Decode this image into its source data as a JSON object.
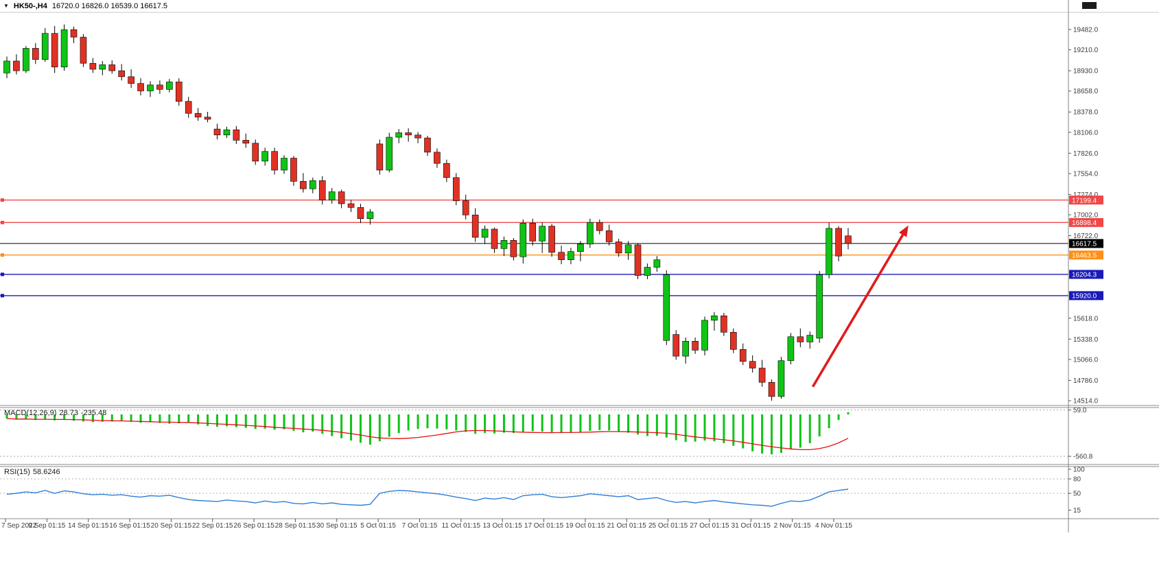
{
  "header": {
    "collapse_icon": "▼",
    "symbol": "HK50-,H4",
    "ohlc": "16720.0 16826.0 16539.0 16617.5"
  },
  "chart_data": {
    "type": "candlestick",
    "symbol": "HK50-",
    "timeframe": "H4",
    "last_ohlc": {
      "open": 16720.0,
      "high": 16826.0,
      "low": 16539.0,
      "close": 16617.5
    },
    "grid": "off",
    "price_range": {
      "top": 19482.0,
      "bottom": 14514.0
    },
    "price_axis_labels": [
      "19482.0",
      "19210.0",
      "18930.0",
      "18658.0",
      "18378.0",
      "18106.0",
      "17826.0",
      "17554.0",
      "17274.0",
      "17002.0",
      "16722.0",
      "15618.0",
      "15338.0",
      "15066.0",
      "14786.0",
      "14514.0"
    ],
    "time_labels": [
      "7 Sep 2022",
      "9 Sep 01:15",
      "14 Sep 01:15",
      "16 Sep 01:15",
      "20 Sep 01:15",
      "22 Sep 01:15",
      "26 Sep 01:15",
      "28 Sep 01:15",
      "30 Sep 01:15",
      "5 Oct 01:15",
      "7 Oct 01:15",
      "11 Oct 01:15",
      "13 Oct 01:15",
      "17 Oct 01:15",
      "19 Oct 01:15",
      "21 Oct 01:15",
      "25 Oct 01:15",
      "27 Oct 01:15",
      "31 Oct 01:15",
      "2 Nov 01:15",
      "4 Nov 01:15"
    ],
    "levels": [
      {
        "price": 17199.4,
        "label": "17199.4",
        "color": "#f04848",
        "kind": "resistance"
      },
      {
        "price": 16898.4,
        "label": "16898.4",
        "color": "#f04848",
        "kind": "resistance"
      },
      {
        "price": 16617.5,
        "label": "16617.5",
        "color": "#000000",
        "kind": "current-price"
      },
      {
        "price": 16463.5,
        "label": "16463.5",
        "color": "#ff9015",
        "kind": "level"
      },
      {
        "price": 16204.3,
        "label": "16204.3",
        "color": "#1a1ab8",
        "kind": "support"
      },
      {
        "price": 15920.0,
        "label": "15920.0",
        "color": "#1a1ab8",
        "kind": "support"
      }
    ],
    "candles": [
      [
        18900,
        19120,
        18830,
        19060
      ],
      [
        19060,
        19150,
        18880,
        18930
      ],
      [
        18930,
        19260,
        18900,
        19230
      ],
      [
        19230,
        19300,
        19020,
        19080
      ],
      [
        19080,
        19500,
        19050,
        19430
      ],
      [
        19430,
        19530,
        18900,
        18980
      ],
      [
        18980,
        19550,
        18930,
        19480
      ],
      [
        19480,
        19520,
        19300,
        19380
      ],
      [
        19380,
        19420,
        18980,
        19030
      ],
      [
        19030,
        19100,
        18900,
        18950
      ],
      [
        18950,
        19060,
        18870,
        19010
      ],
      [
        19010,
        19070,
        18890,
        18930
      ],
      [
        18930,
        19020,
        18800,
        18850
      ],
      [
        18850,
        18950,
        18700,
        18760
      ],
      [
        18760,
        18830,
        18600,
        18660
      ],
      [
        18660,
        18790,
        18580,
        18740
      ],
      [
        18740,
        18800,
        18620,
        18680
      ],
      [
        18680,
        18820,
        18640,
        18780
      ],
      [
        18780,
        18830,
        18460,
        18520
      ],
      [
        18520,
        18580,
        18300,
        18360
      ],
      [
        18360,
        18430,
        18260,
        18310
      ],
      [
        18310,
        18380,
        18240,
        18280
      ],
      [
        18150,
        18220,
        18010,
        18070
      ],
      [
        18070,
        18180,
        18030,
        18140
      ],
      [
        18140,
        18190,
        17950,
        18000
      ],
      [
        18000,
        18090,
        17900,
        17960
      ],
      [
        17960,
        18010,
        17670,
        17720
      ],
      [
        17720,
        17900,
        17660,
        17850
      ],
      [
        17850,
        17900,
        17540,
        17600
      ],
      [
        17600,
        17800,
        17550,
        17760
      ],
      [
        17760,
        17790,
        17390,
        17450
      ],
      [
        17450,
        17560,
        17300,
        17350
      ],
      [
        17350,
        17500,
        17290,
        17460
      ],
      [
        17460,
        17520,
        17140,
        17200
      ],
      [
        17200,
        17360,
        17150,
        17310
      ],
      [
        17310,
        17340,
        17090,
        17150
      ],
      [
        17150,
        17200,
        17040,
        17100
      ],
      [
        17100,
        17150,
        16890,
        16950
      ],
      [
        16950,
        17080,
        16870,
        17040
      ],
      [
        17950,
        18010,
        17540,
        17600
      ],
      [
        17600,
        18100,
        17570,
        18040
      ],
      [
        18040,
        18150,
        17960,
        18100
      ],
      [
        18100,
        18160,
        17980,
        18070
      ],
      [
        18070,
        18110,
        17960,
        18030
      ],
      [
        18030,
        18060,
        17790,
        17840
      ],
      [
        17840,
        17890,
        17630,
        17690
      ],
      [
        17690,
        17740,
        17440,
        17500
      ],
      [
        17500,
        17560,
        17130,
        17190
      ],
      [
        17190,
        17270,
        16940,
        17000
      ],
      [
        17000,
        17090,
        16640,
        16700
      ],
      [
        16700,
        16860,
        16610,
        16810
      ],
      [
        16810,
        16830,
        16490,
        16550
      ],
      [
        16550,
        16710,
        16450,
        16660
      ],
      [
        16660,
        16690,
        16390,
        16440
      ],
      [
        16440,
        16940,
        16350,
        16890
      ],
      [
        16890,
        16950,
        16590,
        16650
      ],
      [
        16650,
        16900,
        16490,
        16850
      ],
      [
        16850,
        16880,
        16440,
        16500
      ],
      [
        16500,
        16590,
        16340,
        16400
      ],
      [
        16400,
        16560,
        16340,
        16510
      ],
      [
        16510,
        16650,
        16380,
        16610
      ],
      [
        16610,
        16950,
        16560,
        16900
      ],
      [
        16900,
        16940,
        16740,
        16790
      ],
      [
        16790,
        16870,
        16590,
        16640
      ],
      [
        16640,
        16680,
        16440,
        16490
      ],
      [
        16490,
        16650,
        16400,
        16600
      ],
      [
        16600,
        16620,
        16140,
        16190
      ],
      [
        16190,
        16350,
        16140,
        16300
      ],
      [
        16300,
        16450,
        16240,
        16400
      ],
      [
        15320,
        16260,
        15260,
        16200
      ],
      [
        15400,
        15460,
        15060,
        15110
      ],
      [
        15110,
        15360,
        15010,
        15310
      ],
      [
        15310,
        15360,
        15140,
        15190
      ],
      [
        15190,
        15640,
        15120,
        15590
      ],
      [
        15590,
        15700,
        15450,
        15650
      ],
      [
        15650,
        15690,
        15380,
        15430
      ],
      [
        15430,
        15480,
        15150,
        15200
      ],
      [
        15200,
        15280,
        14990,
        15040
      ],
      [
        15040,
        15120,
        14890,
        14950
      ],
      [
        14950,
        15060,
        14700,
        14760
      ],
      [
        14760,
        14800,
        14514,
        14570
      ],
      [
        14570,
        15100,
        14540,
        15050
      ],
      [
        15050,
        15420,
        15000,
        15370
      ],
      [
        15370,
        15480,
        15230,
        15300
      ],
      [
        15300,
        15440,
        15210,
        15390
      ],
      [
        15350,
        16250,
        15290,
        16200
      ],
      [
        16200,
        16898,
        16150,
        16820
      ],
      [
        16820,
        16850,
        16380,
        16450
      ],
      [
        16720,
        16826,
        16539,
        16617.5
      ]
    ],
    "arrow": {
      "t1": 84.3,
      "p1": 14700,
      "t2": 94.3,
      "p2": 16860,
      "color": "#e11b1b"
    },
    "colors": {
      "background": "#ffffff",
      "bull": "#0fc415",
      "bear": "#e03224",
      "wick": "#000000",
      "axis_text": "#3c3c3c"
    }
  },
  "macd": {
    "label": "MACD(12,26,9)",
    "value_main": "28.73",
    "value_signal": "-235.48",
    "axis_top_label": "59.0",
    "axis_bottom_label": "-560.8",
    "histogram_color": "#0fc415",
    "signal_color": "#e80c0c",
    "histogram": [
      -55,
      -70,
      -60,
      -75,
      -65,
      -80,
      -70,
      -85,
      -95,
      -105,
      -100,
      -95,
      -90,
      -100,
      -110,
      -105,
      -115,
      -125,
      -120,
      -115,
      -135,
      -155,
      -165,
      -160,
      -170,
      -180,
      -195,
      -190,
      -205,
      -200,
      -220,
      -240,
      -230,
      -260,
      -290,
      -320,
      -350,
      -380,
      -405,
      -360,
      -300,
      -250,
      -215,
      -195,
      -185,
      -190,
      -200,
      -215,
      -235,
      -260,
      -250,
      -255,
      -245,
      -250,
      -240,
      -225,
      -230,
      -240,
      -250,
      -245,
      -235,
      -220,
      -210,
      -215,
      -230,
      -245,
      -270,
      -290,
      -285,
      -310,
      -345,
      -370,
      -365,
      -350,
      -360,
      -385,
      -420,
      -455,
      -495,
      -525,
      -535,
      -515,
      -470,
      -445,
      -385,
      -295,
      -185,
      -75,
      28.73
    ]
  },
  "rsi": {
    "label": "RSI(15)",
    "value": "58.6246",
    "axis_labels": [
      "100",
      "80",
      "50",
      "15"
    ],
    "level_lines": [
      80,
      50
    ],
    "line_color": "#2f7ed8",
    "values": [
      48,
      50,
      53,
      51,
      56,
      50,
      55,
      53,
      49,
      47,
      48,
      46,
      47,
      44,
      42,
      45,
      44,
      46,
      41,
      37,
      35,
      34,
      33,
      36,
      34,
      33,
      30,
      34,
      31,
      33,
      29,
      28,
      31,
      28,
      30,
      27,
      26,
      25,
      27,
      50,
      54,
      56,
      55,
      53,
      51,
      49,
      46,
      42,
      39,
      35,
      40,
      38,
      41,
      37,
      45,
      47,
      48,
      43,
      41,
      43,
      45,
      49,
      47,
      45,
      43,
      45,
      37,
      39,
      41,
      35,
      31,
      33,
      30,
      33,
      35,
      32,
      30,
      28,
      26,
      25,
      23,
      29,
      34,
      33,
      36,
      44,
      53,
      56,
      58.62
    ]
  }
}
